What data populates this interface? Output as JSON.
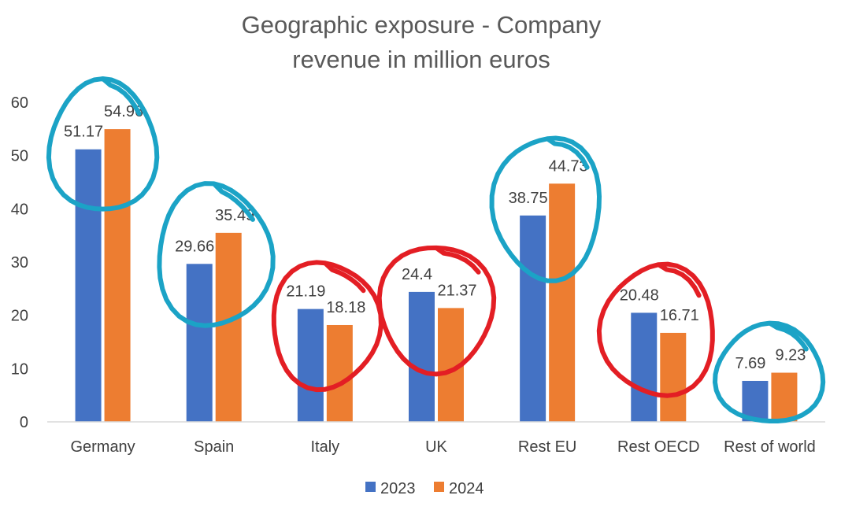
{
  "chart_data": {
    "type": "bar",
    "title": [
      "Geographic exposure - Company",
      "revenue in million euros"
    ],
    "categories": [
      "Germany",
      "Spain",
      "Italy",
      "UK",
      "Rest EU",
      "Rest OECD",
      "Rest of world"
    ],
    "series": [
      {
        "name": "2023",
        "values": [
          51.17,
          29.66,
          21.19,
          24.4,
          38.75,
          20.48,
          7.69
        ],
        "color": "#4472C4"
      },
      {
        "name": "2024",
        "values": [
          54.96,
          35.49,
          18.18,
          21.37,
          44.73,
          16.71,
          9.23
        ],
        "color": "#ED7D31"
      }
    ],
    "ylim": [
      0,
      60
    ],
    "yticks": [
      0,
      10,
      20,
      30,
      40,
      50,
      60
    ],
    "xlabel": "",
    "ylabel": "",
    "grid": false,
    "legend": "bottom",
    "annotations": [
      {
        "type": "circle",
        "category": "Germany",
        "color": "#1BA3C6"
      },
      {
        "type": "circle",
        "category": "Spain",
        "color": "#1BA3C6"
      },
      {
        "type": "circle",
        "category": "Italy",
        "color": "#E31E24"
      },
      {
        "type": "circle",
        "category": "UK",
        "color": "#E31E24"
      },
      {
        "type": "circle",
        "category": "Rest EU",
        "color": "#1BA3C6"
      },
      {
        "type": "circle",
        "category": "Rest OECD",
        "color": "#E31E24"
      },
      {
        "type": "circle",
        "category": "Rest of world",
        "color": "#1BA3C6"
      }
    ]
  }
}
